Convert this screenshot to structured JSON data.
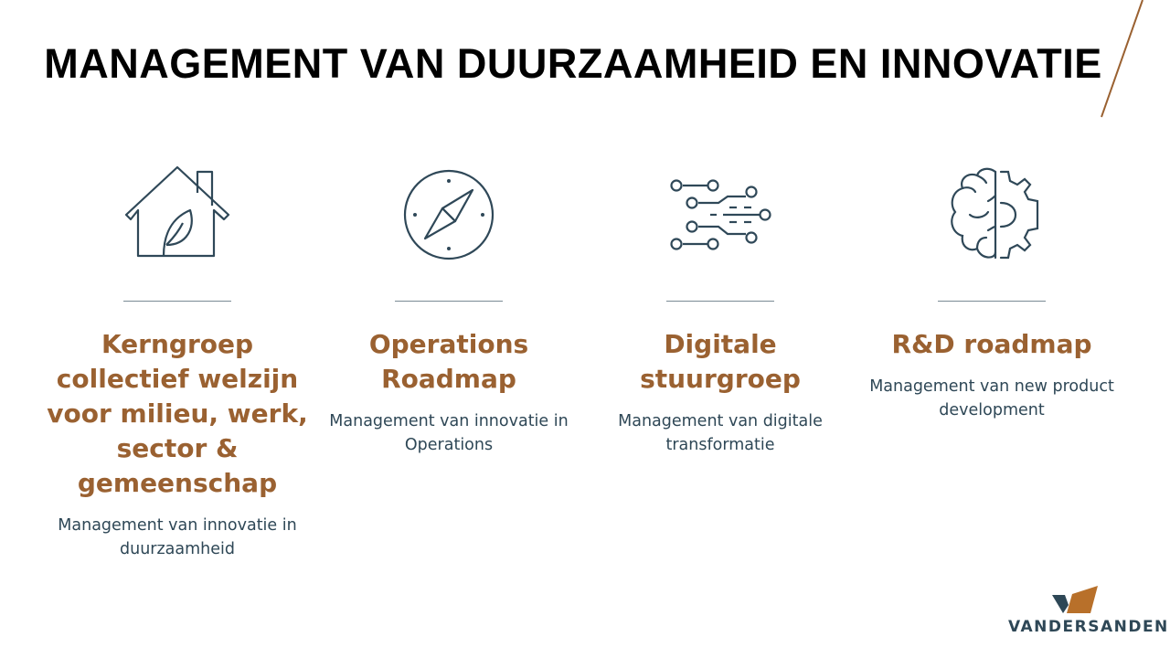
{
  "title": "MANAGEMENT VAN DUURZAAMHEID EN INNOVATIE",
  "colors": {
    "accent": "#9a6131",
    "text": "#2e4756",
    "icon": "#2f4858"
  },
  "columns": [
    {
      "icon": "house-leaf-icon",
      "heading": "Kerngroep collectief welzijn voor milieu, werk, sector & gemeenschap",
      "description": "Management van innovatie in duurzaamheid"
    },
    {
      "icon": "compass-icon",
      "heading": "Operations Roadmap",
      "description": "Management van innovatie in Operations"
    },
    {
      "icon": "digital-circuit-icon",
      "heading": "Digitale stuurgroep",
      "description": "Management van digitale transformatie"
    },
    {
      "icon": "brain-gear-icon",
      "heading": "R&D roadmap",
      "description": "Management van new product development"
    }
  ],
  "logo": {
    "text": "VANDERSANDEN"
  }
}
